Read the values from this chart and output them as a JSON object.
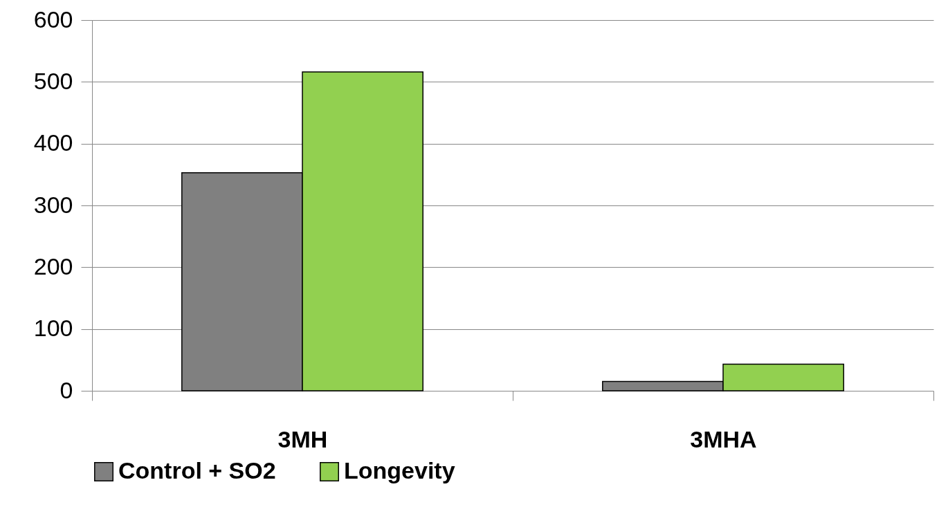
{
  "chart_data": {
    "type": "bar",
    "categories": [
      "3MH",
      "3MHA"
    ],
    "series": [
      {
        "name": "Control + SO2",
        "color": "#808080",
        "values": [
          353,
          15
        ]
      },
      {
        "name": "Longevity",
        "color": "#92d050",
        "values": [
          516,
          43
        ]
      }
    ],
    "ylim": [
      0,
      600
    ],
    "yticks": [
      0,
      100,
      200,
      300,
      400,
      500,
      600
    ],
    "grid": "y",
    "legend": "bottom"
  }
}
